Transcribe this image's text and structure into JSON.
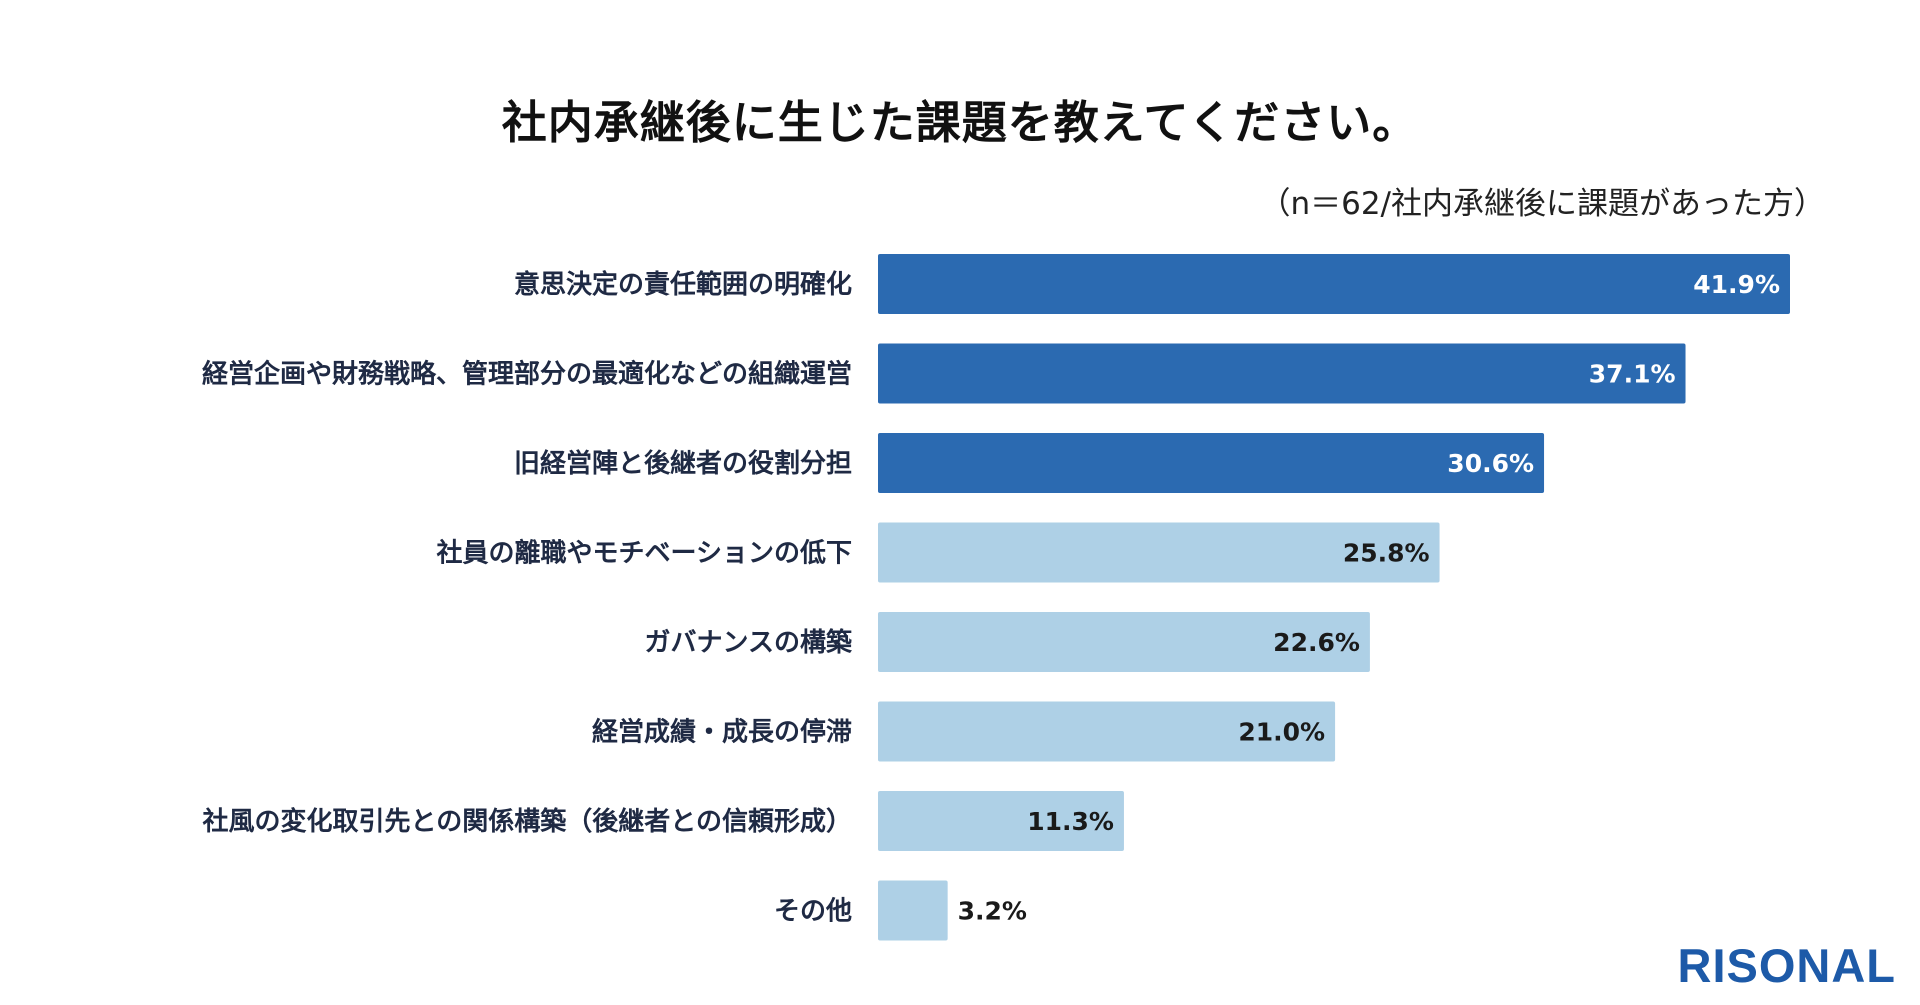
{
  "chart_data": {
    "type": "bar",
    "orientation": "horizontal",
    "title": "社内承継後に生じた課題を教えてください。",
    "subtitle": "（n＝62/社内承継後に課題があった方）",
    "categories": [
      "意思決定の責任範囲の明確化",
      "経営企画や財務戦略、管理部分の最適化などの組織運営",
      "旧経営陣と後継者の役割分担",
      "社員の離職やモチベーションの低下",
      "ガバナンスの構築",
      "経営成績・成長の停滞",
      "社風の変化取引先との関係構築（後継者との信頼形成）",
      "その他"
    ],
    "values": [
      41.9,
      37.1,
      30.6,
      25.8,
      22.6,
      21.0,
      11.3,
      3.2
    ],
    "value_labels": [
      "41.9%",
      "37.1%",
      "30.6%",
      "25.8%",
      "22.6%",
      "21.0%",
      "11.3%",
      "3.2%"
    ],
    "unit": "%",
    "xlim": [
      0,
      41.9
    ],
    "grid": false,
    "highlight_count": 3,
    "colors": {
      "highlight": "#2b6ab1",
      "normal": "#aed0e6",
      "label_on_dark": "#ffffff",
      "label_on_light": "#1a1a1a"
    }
  },
  "brand": {
    "logo_text": "RISONAL",
    "color": "#1d5aa8"
  }
}
